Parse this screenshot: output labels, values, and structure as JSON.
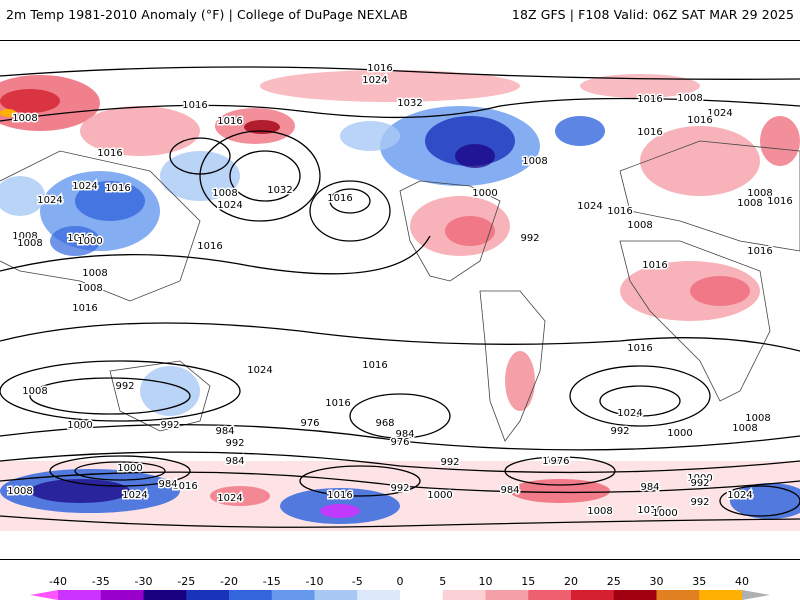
{
  "header": {
    "title": "2m Temp 1981-2010 Anomaly (°F) | College of DuPage NEXLAB",
    "run_info": "18Z GFS | F108 Valid: 06Z SAT MAR 29 2025"
  },
  "colorbar": {
    "ticks": [
      "-40",
      "-35",
      "-30",
      "-25",
      "-20",
      "-15",
      "-10",
      "-5",
      "0",
      "5",
      "10",
      "15",
      "20",
      "25",
      "30",
      "35",
      "40"
    ],
    "colors": [
      "#ff55ff",
      "#cc33ff",
      "#9900cc",
      "#1a0080",
      "#1a33bb",
      "#3366dd",
      "#6699ee",
      "#a9c9f5",
      "#dde9fb",
      "#ffffff",
      "#fbd0d4",
      "#f5a0a8",
      "#ee6070",
      "#d42030",
      "#a00010",
      "#e08020",
      "#ffb000",
      "#ffd000",
      "#b0b0b0"
    ],
    "arrows": true
  },
  "map": {
    "projection": "global cylindrical",
    "isobar_interval_mb": 8,
    "isobar_labels": [
      "1016",
      "1024",
      "1016",
      "1016",
      "1008",
      "1032",
      "1032",
      "1024",
      "1008",
      "1016",
      "1024",
      "1016",
      "1008",
      "1016",
      "1016",
      "1024",
      "1000",
      "1008",
      "1016",
      "1008",
      "1016",
      "1008",
      "1016",
      "1024",
      "1016",
      "1000",
      "1008",
      "992",
      "1016",
      "1008",
      "1024",
      "1016",
      "1016",
      "1008",
      "1008",
      "1008",
      "1016",
      "1016",
      "1016",
      "1008",
      "1024",
      "1016",
      "1016",
      "1024",
      "992",
      "1008",
      "1000",
      "992",
      "984",
      "976",
      "968",
      "984",
      "976",
      "992",
      "1016",
      "992",
      "1000",
      "1008",
      "1008",
      "1000",
      "992",
      "984",
      "1016",
      "1024",
      "984",
      "1024",
      "1016",
      "992",
      "1000",
      "984",
      "976",
      "984",
      "1000",
      "992",
      "1016",
      "1008",
      "1000",
      "1024",
      "992"
    ],
    "anomaly_regions": [
      {
        "region": "Northern Siberia",
        "sign": "warm"
      },
      {
        "region": "Central Asia / China",
        "sign": "cold"
      },
      {
        "region": "Canada / Arctic",
        "sign": "cold"
      },
      {
        "region": "Eastern US",
        "sign": "warm"
      },
      {
        "region": "North Africa / Sahara",
        "sign": "warm"
      },
      {
        "region": "Eastern Europe / Russia",
        "sign": "warm"
      },
      {
        "region": "Southern Ocean / Antarctica coast",
        "sign": "mixed"
      }
    ]
  }
}
